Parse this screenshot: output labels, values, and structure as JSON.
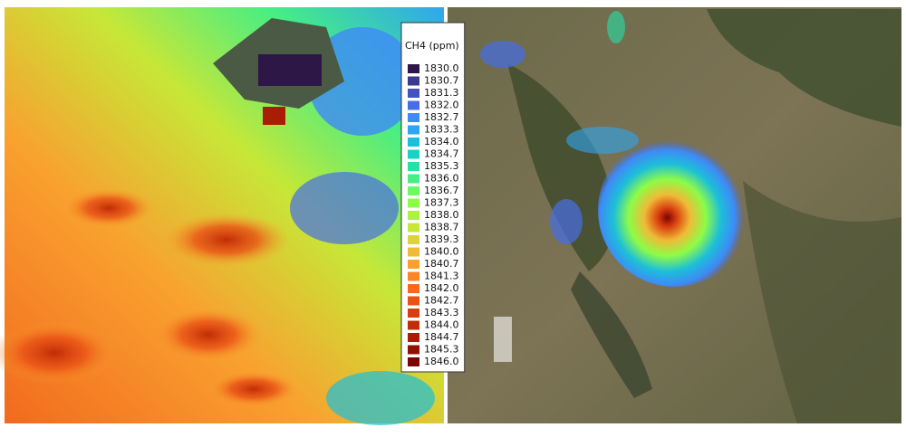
{
  "legend": {
    "title": "CH4 (ppm)",
    "entries": [
      {
        "label": "1830.0",
        "color": "#2d1747"
      },
      {
        "label": "1830.7",
        "color": "#3b3a8f"
      },
      {
        "label": "1831.3",
        "color": "#4453c0"
      },
      {
        "label": "1832.0",
        "color": "#466de6"
      },
      {
        "label": "1832.7",
        "color": "#3f8af7"
      },
      {
        "label": "1833.3",
        "color": "#2ea5f0"
      },
      {
        "label": "1834.0",
        "color": "#1cbfd9"
      },
      {
        "label": "1834.7",
        "color": "#18d3c2"
      },
      {
        "label": "1835.3",
        "color": "#26e0a6"
      },
      {
        "label": "1836.0",
        "color": "#46ee84"
      },
      {
        "label": "1836.7",
        "color": "#6afa62"
      },
      {
        "label": "1837.3",
        "color": "#8dfc47"
      },
      {
        "label": "1838.0",
        "color": "#acf43a"
      },
      {
        "label": "1838.7",
        "color": "#c7e737"
      },
      {
        "label": "1839.3",
        "color": "#dfd238"
      },
      {
        "label": "1840.0",
        "color": "#efbb37"
      },
      {
        "label": "1840.7",
        "color": "#f9a12f"
      },
      {
        "label": "1841.3",
        "color": "#fc8527"
      },
      {
        "label": "1842.0",
        "color": "#f76a1e"
      },
      {
        "label": "1842.7",
        "color": "#ea5216"
      },
      {
        "label": "1843.3",
        "color": "#d83d0e"
      },
      {
        "label": "1844.0",
        "color": "#c22c07"
      },
      {
        "label": "1844.7",
        "color": "#a81d03"
      },
      {
        "label": "1845.3",
        "color": "#8e1101"
      },
      {
        "label": "1846.0",
        "color": "#7a0403"
      }
    ]
  }
}
